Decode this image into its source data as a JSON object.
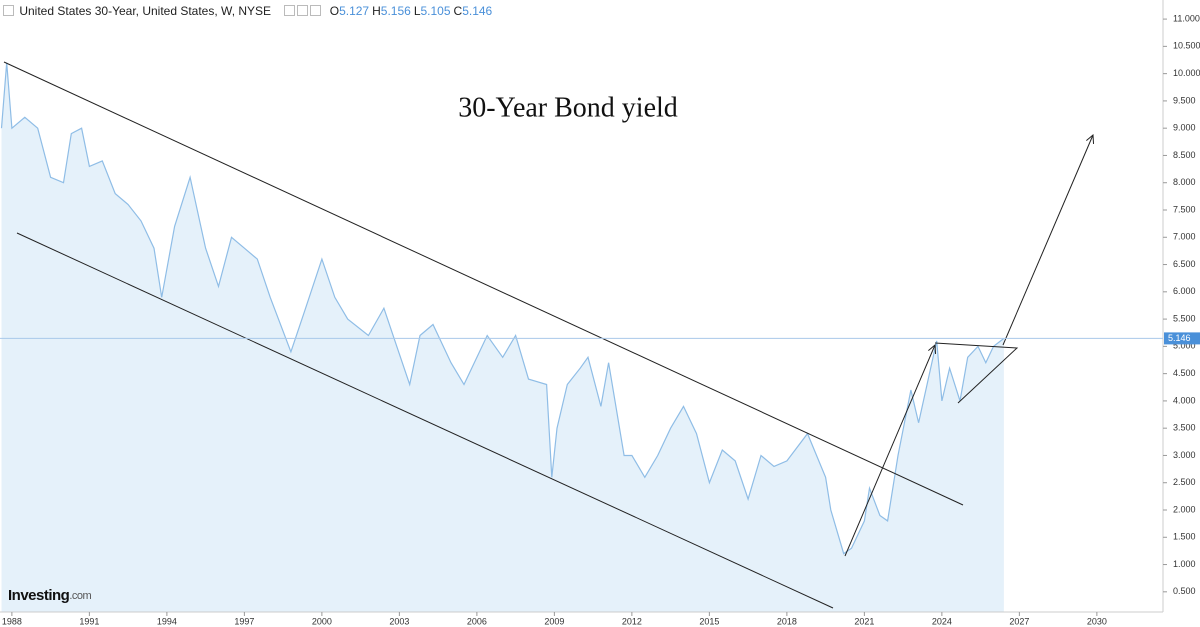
{
  "chart_data": {
    "type": "area",
    "title": "30-Year Bond yield",
    "header": "United States 30-Year, United States, W, NYSE",
    "ohlc": [
      {
        "label": "O",
        "value": 5.127
      },
      {
        "label": "H",
        "value": 5.156
      },
      {
        "label": "L",
        "value": 5.105
      },
      {
        "label": "C",
        "value": 5.146
      }
    ],
    "watermark": [
      "Investing",
      ".com"
    ],
    "x": [
      1987.6,
      1987.8,
      1988.0,
      1988.5,
      1989.0,
      1989.5,
      1990.0,
      1990.3,
      1990.7,
      1991.0,
      1991.5,
      1992.0,
      1992.5,
      1993.0,
      1993.5,
      1993.8,
      1994.3,
      1994.9,
      1995.5,
      1996.0,
      1996.5,
      1997.0,
      1997.5,
      1998.0,
      1998.8,
      1999.3,
      2000.0,
      2000.5,
      2001.0,
      2001.8,
      2002.4,
      2002.9,
      2003.4,
      2003.8,
      2004.3,
      2005.0,
      2005.5,
      2006.4,
      2007.0,
      2007.5,
      2008.0,
      2008.7,
      2008.9,
      2009.1,
      2009.5,
      2010.0,
      2010.3,
      2010.8,
      2011.1,
      2011.7,
      2012.0,
      2012.5,
      2013.0,
      2013.5,
      2014.0,
      2014.5,
      2015.0,
      2015.5,
      2016.0,
      2016.5,
      2017.0,
      2017.5,
      2018.0,
      2018.8,
      2019.5,
      2019.7,
      2020.2,
      2020.5,
      2021.0,
      2021.2,
      2021.6,
      2021.9,
      2022.3,
      2022.8,
      2023.1,
      2023.8,
      2024.0,
      2024.3,
      2024.7,
      2025.0,
      2025.4,
      2025.7,
      2026.0,
      2026.4
    ],
    "series": [
      {
        "name": "United States 30-Year",
        "color": "#8fbde6",
        "fill": "#e5f1fa",
        "values": [
          9.0,
          10.2,
          9.0,
          9.2,
          9.0,
          8.1,
          8.0,
          8.9,
          9.0,
          8.3,
          8.4,
          7.8,
          7.6,
          7.3,
          6.8,
          5.9,
          7.2,
          8.1,
          6.8,
          6.1,
          7.0,
          6.8,
          6.6,
          5.9,
          4.9,
          5.6,
          6.6,
          5.9,
          5.5,
          5.2,
          5.7,
          5.0,
          4.3,
          5.2,
          5.4,
          4.7,
          4.3,
          5.2,
          4.8,
          5.2,
          4.4,
          4.3,
          2.6,
          3.5,
          4.3,
          4.6,
          4.8,
          3.9,
          4.7,
          3.0,
          3.0,
          2.6,
          3.0,
          3.5,
          3.9,
          3.4,
          2.5,
          3.1,
          2.9,
          2.2,
          3.0,
          2.8,
          2.9,
          3.4,
          2.6,
          2.0,
          1.2,
          1.3,
          1.8,
          2.4,
          1.9,
          1.8,
          3.0,
          4.2,
          3.6,
          5.1,
          4.0,
          4.6,
          4.0,
          4.8,
          5.0,
          4.7,
          5.0,
          5.146
        ]
      }
    ],
    "xlim": [
      1987.54,
      2032.56
    ],
    "ylim": [
      0.13,
      11.35
    ],
    "xticks": [
      1988,
      1991,
      1994,
      1997,
      2000,
      2003,
      2006,
      2009,
      2012,
      2015,
      2018,
      2021,
      2024,
      2027,
      2030
    ],
    "yticks": [
      {
        "value": 0.5,
        "label": "0.500"
      },
      {
        "value": 1.0,
        "label": "1.000"
      },
      {
        "value": 1.5,
        "label": "1.500"
      },
      {
        "value": 2.0,
        "label": "2.000"
      },
      {
        "value": 2.5,
        "label": "2.500"
      },
      {
        "value": 3.0,
        "label": "3.000"
      },
      {
        "value": 3.5,
        "label": "3.500"
      },
      {
        "value": 4.0,
        "label": "4.000"
      },
      {
        "value": 4.5,
        "label": "4.500"
      },
      {
        "value": 5.0,
        "label": "5.000"
      },
      {
        "value": 5.5,
        "label": "5.500"
      },
      {
        "value": 6.0,
        "label": "6.000"
      },
      {
        "value": 6.5,
        "label": "6.500"
      },
      {
        "value": 7.0,
        "label": "7.000"
      },
      {
        "value": 7.5,
        "label": "7.500"
      },
      {
        "value": 8.0,
        "label": "8.000"
      },
      {
        "value": 8.5,
        "label": "8.500"
      },
      {
        "value": 9.0,
        "label": "9.000"
      },
      {
        "value": 9.5,
        "label": "9.500"
      },
      {
        "value": 10.0,
        "label": "10.000"
      },
      {
        "value": 10.5,
        "label": "10.500"
      },
      {
        "value": 11.0,
        "label": "11.000"
      }
    ],
    "y_axis_side": "right",
    "grid": false,
    "last_price_line": true
  }
}
